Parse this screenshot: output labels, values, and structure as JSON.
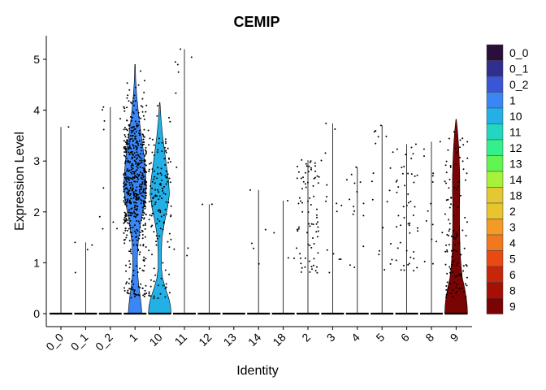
{
  "chart_data": {
    "type": "violin",
    "title": "CEMIP",
    "xlabel": "Identity",
    "ylabel": "Expression Level",
    "ylim": [
      -0.25,
      5.4
    ],
    "yticks": [
      0,
      1,
      2,
      3,
      4,
      5
    ],
    "categories": [
      "0_0",
      "0_1",
      "0_2",
      "1",
      "10",
      "11",
      "12",
      "13",
      "14",
      "18",
      "2",
      "3",
      "4",
      "5",
      "6",
      "8",
      "9"
    ],
    "colors": {
      "0_0": "#2a0f3a",
      "0_1": "#2e2f8f",
      "0_2": "#3a55d6",
      "1": "#3a86f5",
      "10": "#22b0e6",
      "11": "#22d6c2",
      "12": "#35f08a",
      "13": "#62f552",
      "14": "#a6f23a",
      "18": "#e3c733",
      "2": "#e8c52e",
      "3": "#f59a26",
      "4": "#f0781d",
      "5": "#e84a12",
      "6": "#c8260a",
      "8": "#a60f03",
      "9": "#7a0303"
    },
    "series": [
      {
        "group": "0_0",
        "max": 3.67,
        "count": 1,
        "density": []
      },
      {
        "group": "0_1",
        "max": 1.4,
        "count": 4,
        "density": []
      },
      {
        "group": "0_2",
        "max": 4.06,
        "count": 10,
        "density": []
      },
      {
        "group": "1",
        "max": 4.9,
        "count": 600,
        "density": [
          [
            0,
            0.6
          ],
          [
            0.15,
            0.55
          ],
          [
            0.35,
            0.45
          ],
          [
            0.5,
            0.35
          ],
          [
            0.8,
            0.22
          ],
          [
            1.1,
            0.2
          ],
          [
            1.4,
            0.28
          ],
          [
            1.8,
            0.5
          ],
          [
            2.2,
            0.85
          ],
          [
            2.5,
            1.0
          ],
          [
            2.8,
            0.92
          ],
          [
            3.1,
            0.8
          ],
          [
            3.5,
            0.55
          ],
          [
            3.9,
            0.32
          ],
          [
            4.3,
            0.14
          ],
          [
            4.6,
            0.06
          ],
          [
            4.9,
            0.02
          ]
        ]
      },
      {
        "group": "10",
        "max": 4.15,
        "count": 150,
        "density": [
          [
            0,
            1.0
          ],
          [
            0.15,
            0.95
          ],
          [
            0.3,
            0.8
          ],
          [
            0.5,
            0.5
          ],
          [
            0.7,
            0.25
          ],
          [
            0.9,
            0.14
          ],
          [
            1.2,
            0.14
          ],
          [
            1.5,
            0.2
          ],
          [
            1.8,
            0.42
          ],
          [
            2.1,
            0.7
          ],
          [
            2.35,
            0.85
          ],
          [
            2.6,
            0.78
          ],
          [
            2.9,
            0.6
          ],
          [
            3.2,
            0.42
          ],
          [
            3.5,
            0.25
          ],
          [
            3.8,
            0.12
          ],
          [
            4.15,
            0.02
          ]
        ]
      },
      {
        "group": "11",
        "max": 5.2,
        "count": 10,
        "density": []
      },
      {
        "group": "12",
        "max": 2.15,
        "count": 2,
        "density": []
      },
      {
        "group": "13",
        "max": 0,
        "count": 0,
        "density": []
      },
      {
        "group": "14",
        "max": 2.43,
        "count": 5,
        "density": []
      },
      {
        "group": "18",
        "max": 2.22,
        "count": 4,
        "density": []
      },
      {
        "group": "2",
        "max": 3.02,
        "count": 80,
        "density": []
      },
      {
        "group": "3",
        "max": 3.74,
        "count": 15,
        "density": []
      },
      {
        "group": "4",
        "max": 2.88,
        "count": 15,
        "density": []
      },
      {
        "group": "5",
        "max": 3.7,
        "count": 20,
        "density": []
      },
      {
        "group": "6",
        "max": 3.33,
        "count": 50,
        "density": []
      },
      {
        "group": "8",
        "max": 3.38,
        "count": 15,
        "density": []
      },
      {
        "group": "9",
        "max": 3.82,
        "count": 120,
        "density": [
          [
            0,
            1.0
          ],
          [
            0.15,
            0.97
          ],
          [
            0.3,
            0.9
          ],
          [
            0.5,
            0.75
          ],
          [
            0.7,
            0.55
          ],
          [
            0.9,
            0.45
          ],
          [
            1.2,
            0.35
          ],
          [
            1.5,
            0.32
          ],
          [
            1.8,
            0.3
          ],
          [
            2.1,
            0.3
          ],
          [
            2.4,
            0.32
          ],
          [
            2.7,
            0.32
          ],
          [
            3.0,
            0.28
          ],
          [
            3.3,
            0.22
          ],
          [
            3.6,
            0.12
          ],
          [
            3.82,
            0.02
          ]
        ]
      }
    ],
    "legend": {
      "position": "right"
    },
    "grid": false
  }
}
